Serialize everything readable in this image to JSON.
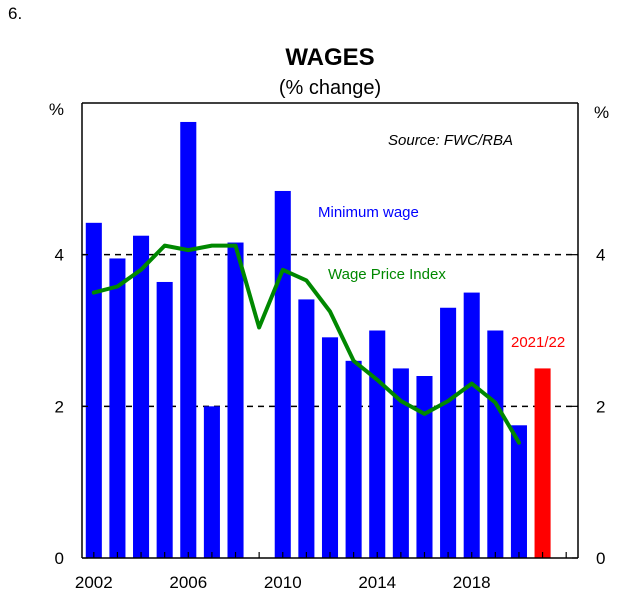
{
  "figure_number": "6.",
  "colors": {
    "minimum_wage": "#0000ff",
    "latest_bar": "#ff0000",
    "wage_price_index": "#008800",
    "axis": "#000000"
  },
  "chart_data": {
    "type": "bar",
    "title": "WAGES",
    "subtitle": "(% change)",
    "y_unit_left": "%",
    "y_unit_right": "%",
    "source": "Source: FWC/RBA",
    "xlim": [
      2001.5,
      2022.5
    ],
    "ylim": [
      0,
      6
    ],
    "yticks": [
      0,
      2,
      4
    ],
    "xticks": [
      "2002",
      "2006",
      "2010",
      "2014",
      "2018"
    ],
    "reference_lines": [
      2,
      4
    ],
    "series": [
      {
        "name": "Minimum wage",
        "type": "bar",
        "x": [
          2002,
          2003,
          2004,
          2005,
          2006,
          2007,
          2008,
          2010,
          2011,
          2012,
          2013,
          2014,
          2015,
          2016,
          2017,
          2018,
          2019,
          2020
        ],
        "values": [
          4.42,
          3.95,
          4.25,
          3.64,
          5.75,
          2.0,
          4.16,
          4.84,
          3.41,
          2.91,
          2.6,
          3.0,
          2.5,
          2.4,
          3.3,
          3.5,
          3.0,
          1.75
        ]
      },
      {
        "name": "2021/22",
        "type": "bar",
        "x": [
          2021
        ],
        "values": [
          2.5
        ]
      },
      {
        "name": "Wage Price Index",
        "type": "line",
        "x": [
          2002,
          2003,
          2004,
          2005,
          2006,
          2007,
          2008,
          2009,
          2010,
          2011,
          2012,
          2013,
          2014,
          2015,
          2016,
          2017,
          2018,
          2019,
          2020
        ],
        "values": [
          3.5,
          3.58,
          3.8,
          4.12,
          4.06,
          4.12,
          4.12,
          3.04,
          3.8,
          3.66,
          3.25,
          2.6,
          2.35,
          2.07,
          1.9,
          2.07,
          2.3,
          2.05,
          1.52
        ]
      }
    ],
    "labels": {
      "minimum_wage": "Minimum wage",
      "wage_price_index": "Wage Price Index",
      "latest": "2021/22"
    }
  }
}
